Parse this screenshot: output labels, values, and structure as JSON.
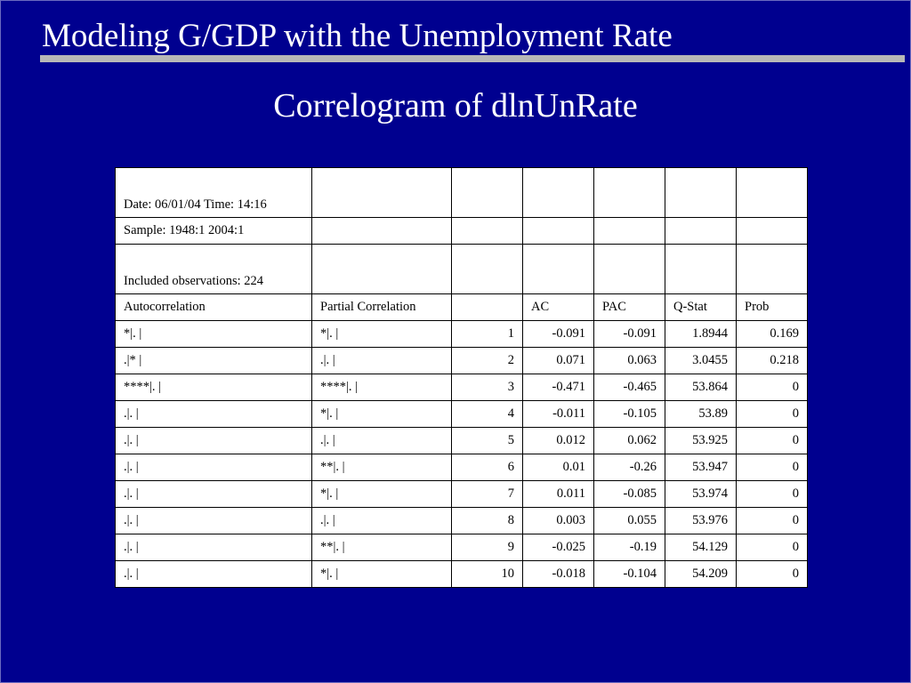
{
  "slide": {
    "title": "Modeling G/GDP with the Unemployment Rate",
    "subtitle": "Correlogram of dlnUnRate"
  },
  "table": {
    "meta": {
      "date": "Date: 06/01/04   Time: 14:16",
      "sample": "Sample: 1948:1 2004:1",
      "observations": "Included observations: 224"
    },
    "headers": [
      "Autocorrelation",
      "Partial Correlation",
      "",
      "AC",
      "PAC",
      "Q-Stat",
      "Prob"
    ],
    "rows": [
      [
        "       *|.      |",
        "       *|.      |",
        "1",
        "-0.091",
        "-0.091",
        "1.8944",
        "0.169"
      ],
      [
        "       .|*      |",
        "       .|.      |",
        "2",
        "0.071",
        "0.063",
        "3.0455",
        "0.218"
      ],
      [
        "    ****|.      |",
        "    ****|.      |",
        "3",
        "-0.471",
        "-0.465",
        "53.864",
        "0"
      ],
      [
        "       .|.      |",
        "       *|.      |",
        "4",
        "-0.011",
        "-0.105",
        "53.89",
        "0"
      ],
      [
        "       .|.      |",
        "       .|.      |",
        "5",
        "0.012",
        "0.062",
        "53.925",
        "0"
      ],
      [
        "       .|.      |",
        "      **|.      |",
        "6",
        "0.01",
        "-0.26",
        "53.947",
        "0"
      ],
      [
        "       .|.      |",
        "       *|.      |",
        "7",
        "0.011",
        "-0.085",
        "53.974",
        "0"
      ],
      [
        "       .|.      |",
        "       .|.      |",
        "8",
        "0.003",
        "0.055",
        "53.976",
        "0"
      ],
      [
        "       .|.      |",
        "      **|.      |",
        "9",
        "-0.025",
        "-0.19",
        "54.129",
        "0"
      ],
      [
        "       .|.      |",
        "       *|.      |",
        "10",
        "-0.018",
        "-0.104",
        "54.209",
        "0"
      ]
    ]
  }
}
